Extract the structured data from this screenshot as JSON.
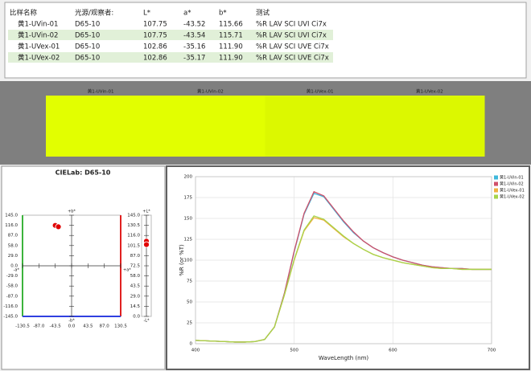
{
  "table": {
    "headers": [
      "比样名称",
      "光源/观察者:",
      "L*",
      "a*",
      "b*",
      "测试"
    ],
    "rows": [
      [
        "黄1-UVin-01",
        "D65-10",
        "107.75",
        "-43.52",
        "115.66",
        "%R LAV SCI UVI Ci7x"
      ],
      [
        "黄1-UVin-02",
        "D65-10",
        "107.75",
        "-43.54",
        "115.71",
        "%R LAV SCI UVI Ci7x"
      ],
      [
        "黄1-UVex-01",
        "D65-10",
        "102.86",
        "-35.16",
        "111.90",
        "%R LAV SCI UVE Ci7x"
      ],
      [
        "黄1-UVex-02",
        "D65-10",
        "102.86",
        "-35.17",
        "111.90",
        "%R LAV SCI UVE Ci7x"
      ]
    ]
  },
  "swatches": [
    {
      "label": "黄1-UVin-01",
      "color": "#e2ff00"
    },
    {
      "label": "黄1-UVin-02",
      "color": "#e2ff00"
    },
    {
      "label": "黄1-UVex-01",
      "color": "#dcf800"
    },
    {
      "label": "黄1-UVex-02",
      "color": "#dcf800"
    }
  ],
  "cielab": {
    "title": "CIELab: D65-10",
    "ab_plot": {
      "xlim": [
        -130.5,
        130.5
      ],
      "ylim": [
        -145,
        145
      ],
      "xticks": [
        {
          "value": -130.5,
          "label": "-130.5"
        },
        {
          "value": -87,
          "label": "-87.0"
        },
        {
          "value": -43.5,
          "label": "-43.5"
        },
        {
          "value": 0,
          "label": "0.0"
        },
        {
          "value": 43.5,
          "label": "43.5"
        },
        {
          "value": 87,
          "label": "87.0"
        },
        {
          "value": 130.5,
          "label": "130.5"
        }
      ],
      "yticks": [
        {
          "value": 145,
          "label": "145.0"
        },
        {
          "value": 116,
          "label": "116.0"
        },
        {
          "value": 87,
          "label": "87.0"
        },
        {
          "value": 58,
          "label": "58.0"
        },
        {
          "value": 29,
          "label": "29.0"
        },
        {
          "value": 0,
          "label": "0.0"
        },
        {
          "value": -29,
          "label": "-29.0"
        },
        {
          "value": -58,
          "label": "-58.0"
        },
        {
          "value": -87,
          "label": "-87.0"
        },
        {
          "value": -116,
          "label": "-116.0"
        },
        {
          "value": -145,
          "label": "-145.0"
        }
      ],
      "plus_b": "+b*",
      "minus_b": "-b*",
      "minus_a": "-a*",
      "plus_a": "+a*"
    },
    "l_plot": {
      "ylim": [
        0,
        145
      ],
      "yticks": [
        {
          "value": 145,
          "label": "145.0"
        },
        {
          "value": 130.5,
          "label": "130.5"
        },
        {
          "value": 116,
          "label": "116.0"
        },
        {
          "value": 101.5,
          "label": "101.5"
        },
        {
          "value": 87,
          "label": "87.0"
        },
        {
          "value": 72.5,
          "label": "72.5"
        },
        {
          "value": 58,
          "label": "58.0"
        },
        {
          "value": 43.5,
          "label": "43.5"
        },
        {
          "value": 29,
          "label": "29.0"
        },
        {
          "value": 14.5,
          "label": "14.5"
        },
        {
          "value": 0,
          "label": "0.0"
        }
      ],
      "plus_l": "+L*",
      "minus_l": "-L*"
    },
    "point_color": "#e00000"
  },
  "spectrum": {
    "type": "line",
    "x_label": "WaveLength (nm)",
    "y_label": "%R (or %T)",
    "xlim": [
      400,
      700
    ],
    "ylim": [
      0,
      200
    ],
    "xticks": [
      400,
      500,
      600,
      700
    ],
    "yticks": [
      0,
      25,
      50,
      75,
      100,
      125,
      150,
      175,
      200
    ],
    "grid": true,
    "legend": "top-right",
    "x": [
      400,
      410,
      420,
      430,
      440,
      450,
      460,
      470,
      480,
      490,
      500,
      510,
      520,
      530,
      540,
      550,
      560,
      570,
      580,
      590,
      600,
      610,
      620,
      630,
      640,
      650,
      660,
      670,
      680,
      690,
      700
    ],
    "series": [
      {
        "name": "黄1-UVin-01",
        "color": "#3fb8dc",
        "values": [
          4,
          3.5,
          3,
          2.5,
          2,
          2,
          2.5,
          5,
          20,
          60,
          110,
          155,
          180,
          176,
          161,
          146,
          133,
          123,
          115,
          109,
          104,
          100,
          97,
          94,
          92,
          91,
          90,
          90,
          89,
          89,
          89
        ]
      },
      {
        "name": "黄1-UVin-02",
        "color": "#d0506a",
        "values": [
          4,
          3.5,
          3,
          2.5,
          2,
          2,
          2.5,
          5,
          20,
          60,
          111,
          156,
          182,
          177,
          162,
          147,
          134,
          123,
          115,
          109,
          104,
          100,
          97,
          94,
          92,
          91,
          90,
          90,
          89,
          89,
          89
        ]
      },
      {
        "name": "黄1-UVex-01",
        "color": "#f0b040",
        "values": [
          4,
          3.5,
          3,
          2.5,
          2,
          2,
          2.5,
          5,
          20,
          58,
          100,
          135,
          151,
          148,
          138,
          128,
          120,
          113,
          107,
          103,
          100,
          97,
          95,
          93,
          91,
          90,
          90,
          89,
          89,
          89,
          89
        ]
      },
      {
        "name": "黄1-UVex-02",
        "color": "#a6d44a",
        "values": [
          4,
          3.5,
          3,
          2.5,
          2,
          2,
          2.5,
          5,
          20,
          58,
          101,
          136,
          153,
          149,
          139,
          129,
          120,
          113,
          107,
          103,
          100,
          97,
          95,
          93,
          91,
          90,
          90,
          89,
          89,
          89,
          89
        ]
      }
    ]
  }
}
